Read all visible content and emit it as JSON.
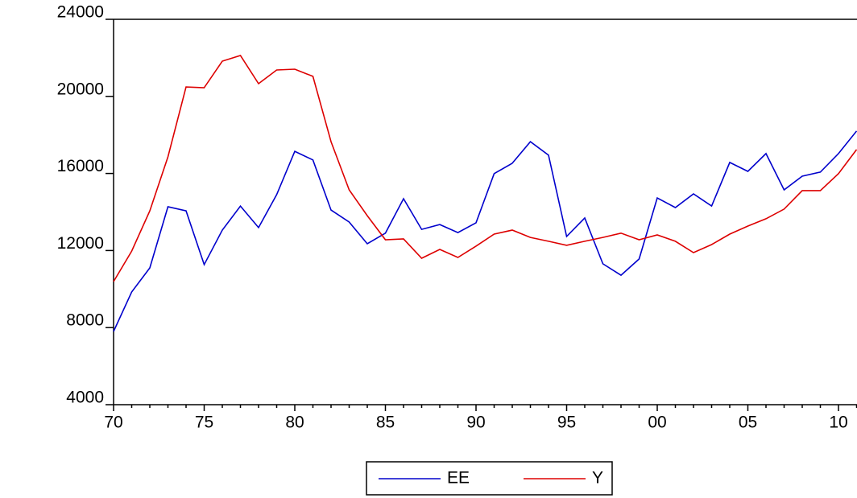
{
  "chart_data": {
    "type": "line",
    "categories": [
      "70",
      null,
      null,
      null,
      null,
      "75",
      null,
      null,
      null,
      null,
      "80",
      null,
      null,
      null,
      null,
      "85",
      null,
      null,
      null,
      null,
      "90",
      null,
      null,
      null,
      null,
      "95",
      null,
      null,
      null,
      null,
      "00",
      null,
      null,
      null,
      null,
      "05",
      null,
      null,
      null,
      null,
      "10",
      null
    ],
    "series": [
      {
        "name": "EE",
        "color": "#0000cc",
        "values": [
          7800,
          9850,
          11100,
          14270,
          14060,
          11270,
          13060,
          14310,
          13190,
          14900,
          17150,
          16700,
          14100,
          13480,
          12350,
          12900,
          14690,
          13100,
          13350,
          12930,
          13440,
          15990,
          16530,
          17650,
          16950,
          12730,
          13690,
          11310,
          10720,
          11560,
          14730,
          14230,
          14940,
          14310,
          16570,
          16110,
          17030,
          15150,
          15860,
          16070,
          17030,
          18200
        ]
      },
      {
        "name": "Y",
        "color": "#dd0000",
        "values": [
          10390,
          11970,
          14060,
          16860,
          20490,
          20450,
          21830,
          22120,
          20660,
          21370,
          21410,
          21040,
          17650,
          15150,
          13810,
          12560,
          12600,
          11600,
          12060,
          11640,
          12230,
          12850,
          13060,
          12680,
          12480,
          12270,
          12480,
          12680,
          12900,
          12560,
          12810,
          12480,
          11890,
          12310,
          12850,
          13270,
          13650,
          14150,
          15110,
          15110,
          15990,
          17240
        ]
      }
    ],
    "ylim": [
      4000,
      24000
    ],
    "yticks": [
      4000,
      8000,
      12000,
      16000,
      20000,
      24000
    ]
  }
}
